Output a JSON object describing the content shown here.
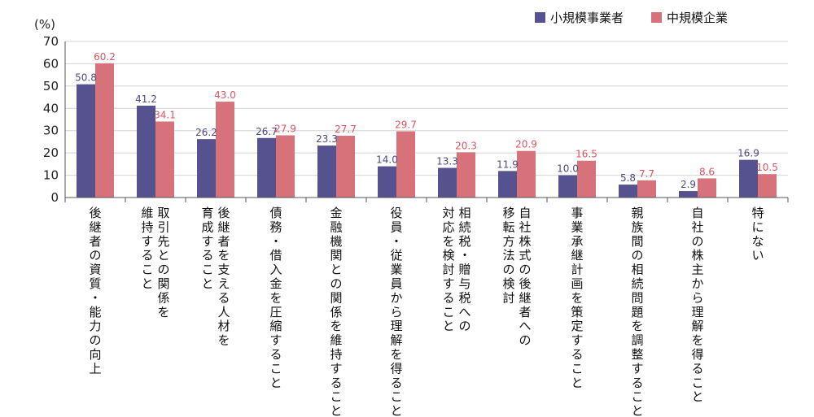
{
  "chart_data": {
    "type": "bar",
    "y_unit_label": "(%)",
    "ylim": [
      0,
      70
    ],
    "yticks": [
      0,
      10,
      20,
      30,
      40,
      50,
      60,
      70
    ],
    "grid": true,
    "legend_position": "top-right",
    "categories": [
      [
        "後継者の資質・能力の向上"
      ],
      [
        "取引先との関係を",
        "維持すること"
      ],
      [
        "後継者を支える人材を",
        "育成すること"
      ],
      [
        "債務・借入金を圧縮すること"
      ],
      [
        "金融機関との関係を維持すること"
      ],
      [
        "役員・従業員から理解を得ること"
      ],
      [
        "相続税・贈与税への",
        "対応を検討すること"
      ],
      [
        "自社株式の後継者への",
        "移転方法の検討"
      ],
      [
        "事業承継計画を策定すること"
      ],
      [
        "親族間の相続問題を調整すること"
      ],
      [
        "自社の株主から理解を得ること"
      ],
      [
        "特にない"
      ]
    ],
    "series": [
      {
        "name": "小規模事業者",
        "color": "#565290",
        "label_color": "#4a4a85",
        "values": [
          50.8,
          41.2,
          26.2,
          26.7,
          23.3,
          14.0,
          13.3,
          11.9,
          10.0,
          5.8,
          2.9,
          16.9
        ]
      },
      {
        "name": "中規模企業",
        "color": "#d8727a",
        "label_color": "#d9545f",
        "values": [
          60.2,
          34.1,
          43.0,
          27.9,
          27.7,
          29.7,
          20.3,
          20.9,
          16.5,
          7.7,
          8.6,
          10.5
        ]
      }
    ]
  }
}
